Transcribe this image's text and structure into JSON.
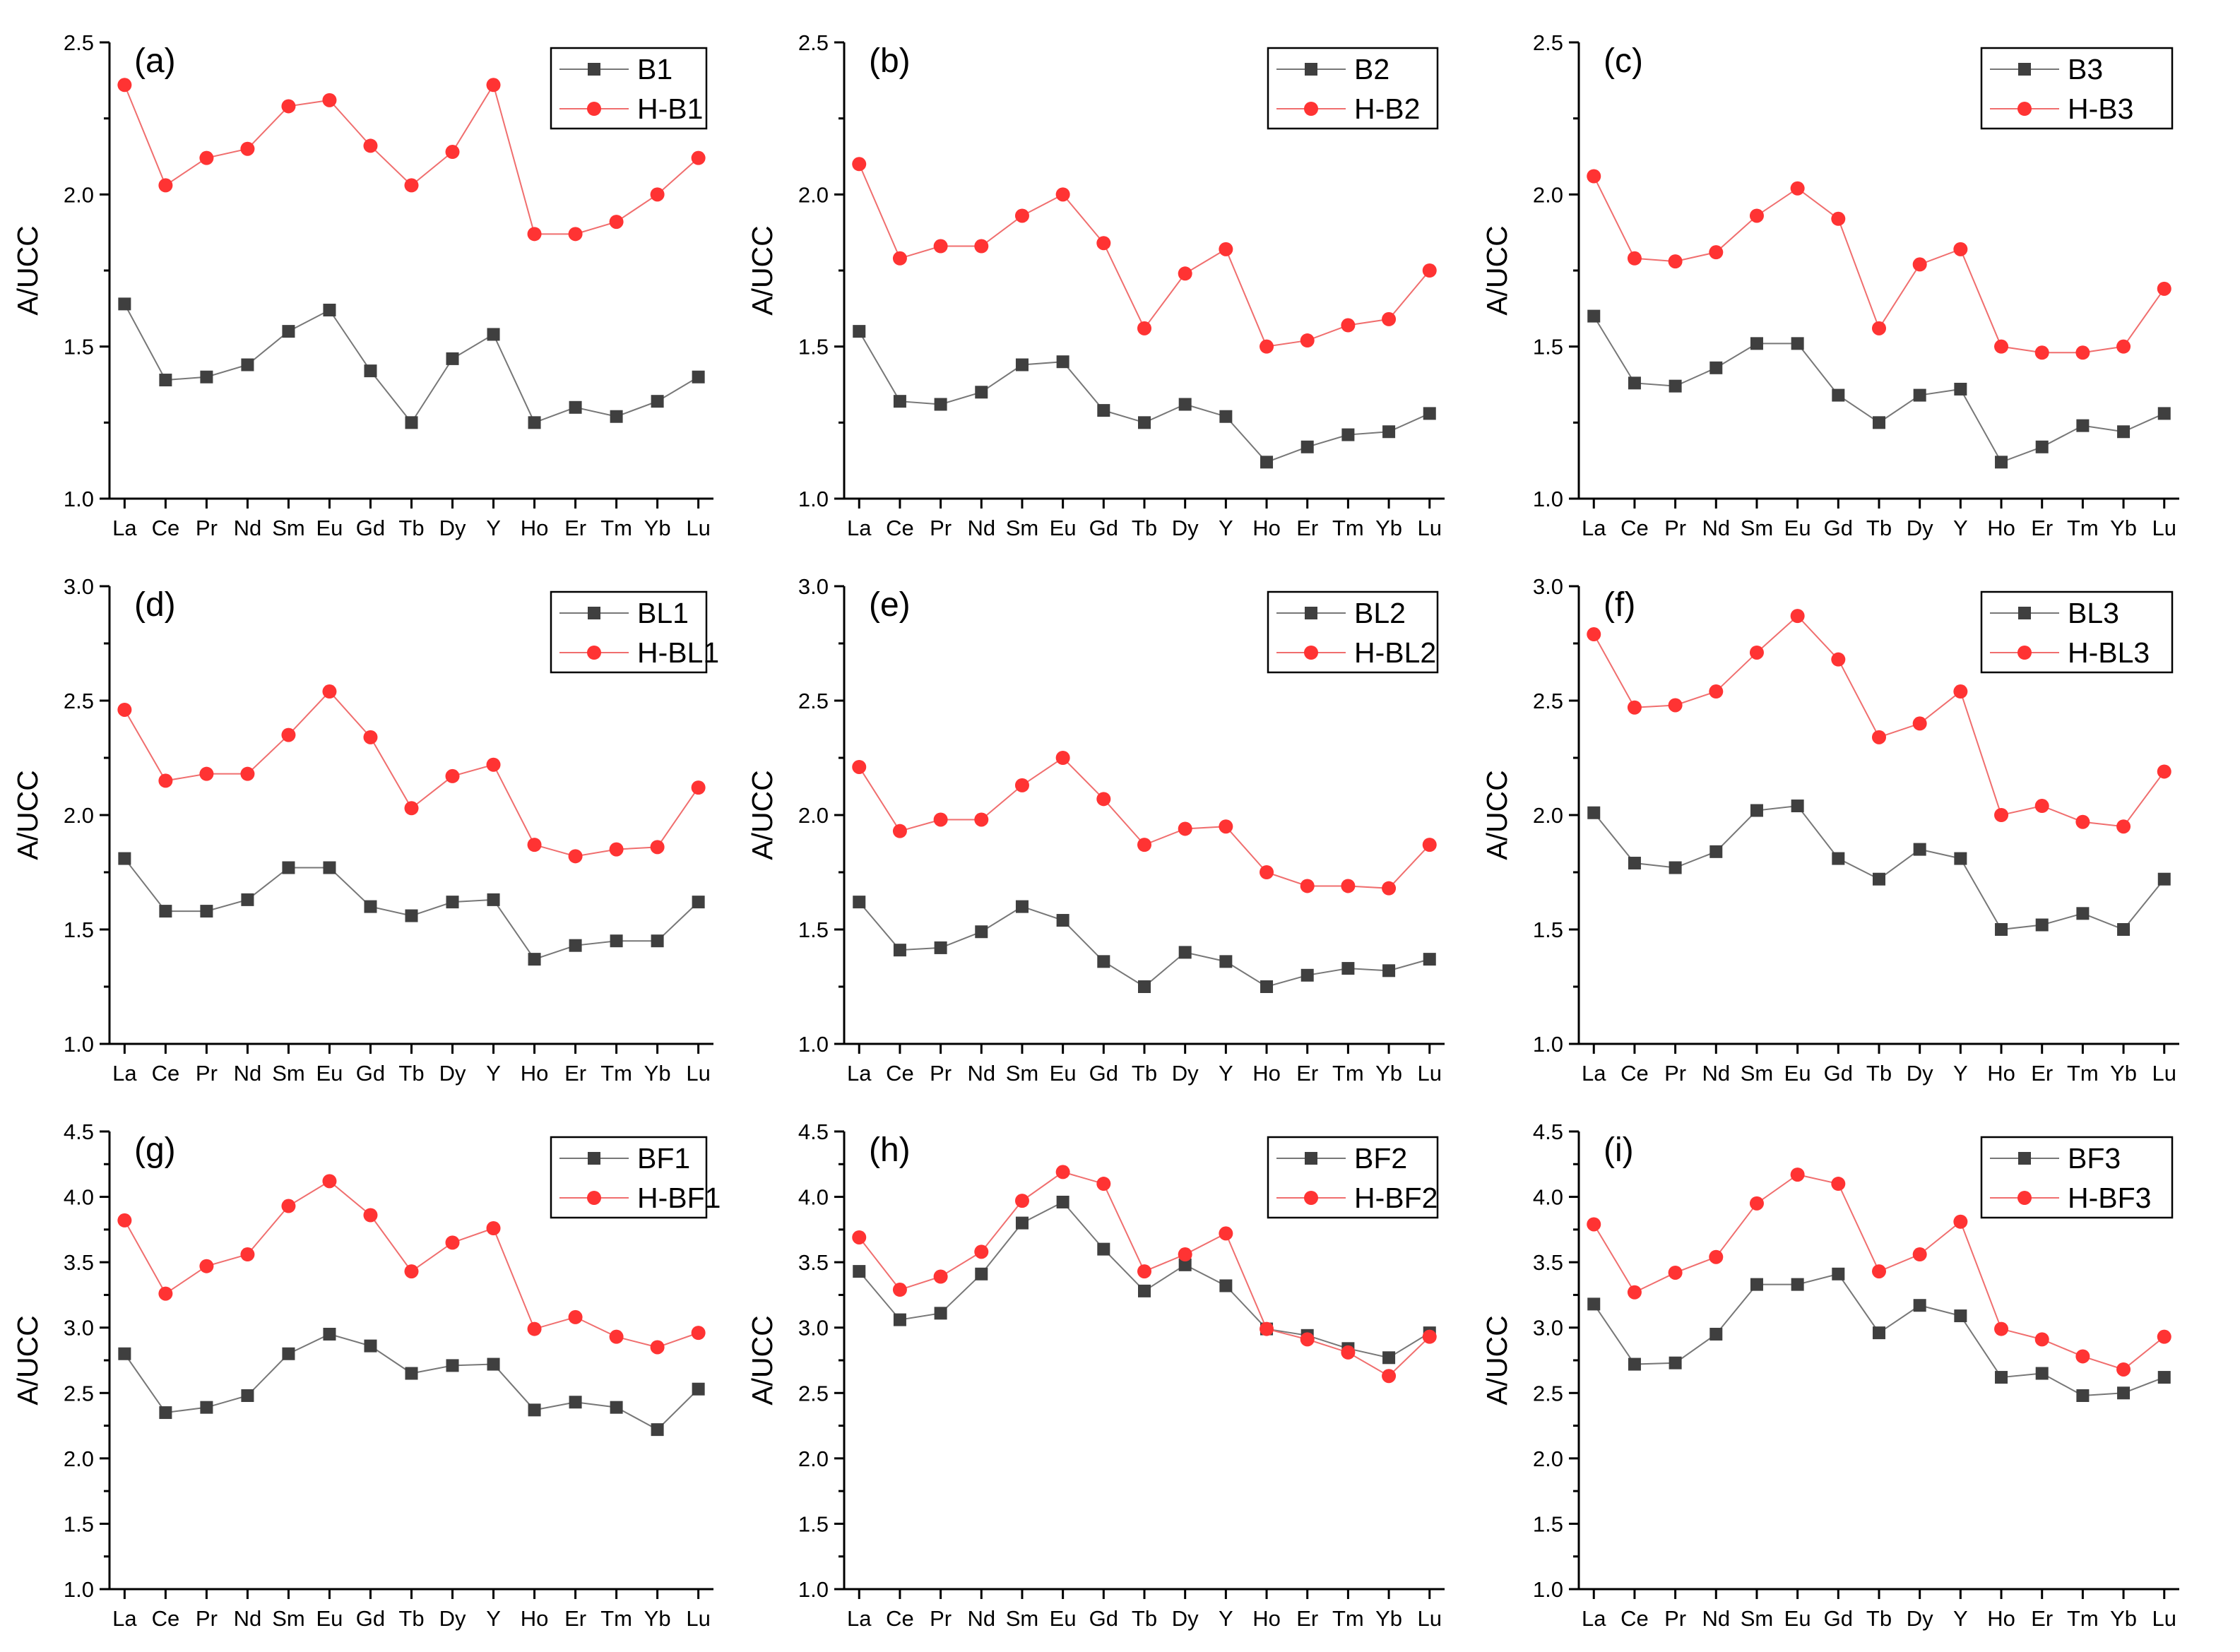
{
  "colors": {
    "sample_series": "#3f3f3f",
    "sample_line": "#777777",
    "h_series": "#ff3333",
    "h_line": "#f06e6e",
    "axis": "#000000"
  },
  "chart_data": [
    {
      "type": "line",
      "panel_label": "(a)",
      "ylabel": "A/UCC",
      "ylim": [
        1.0,
        2.5
      ],
      "yticks": [
        "1.0",
        "1.5",
        "2.0",
        "2.5"
      ],
      "categories": [
        "La",
        "Ce",
        "Pr",
        "Nd",
        "Sm",
        "Eu",
        "Gd",
        "Tb",
        "Dy",
        "Y",
        "Ho",
        "Er",
        "Tm",
        "Yb",
        "Lu"
      ],
      "legend_position": "top-right",
      "series": [
        {
          "name": "B1",
          "marker": "square",
          "values": [
            1.64,
            1.39,
            1.4,
            1.44,
            1.55,
            1.62,
            1.42,
            1.25,
            1.46,
            1.54,
            1.25,
            1.3,
            1.27,
            1.32,
            1.4
          ]
        },
        {
          "name": "H-B1",
          "marker": "circle",
          "values": [
            2.36,
            2.03,
            2.12,
            2.15,
            2.29,
            2.31,
            2.16,
            2.03,
            2.14,
            2.36,
            1.87,
            1.87,
            1.91,
            2.0,
            2.12
          ]
        }
      ]
    },
    {
      "type": "line",
      "panel_label": "(b)",
      "ylabel": "A/UCC",
      "ylim": [
        1.0,
        2.5
      ],
      "yticks": [
        "1.0",
        "1.5",
        "2.0",
        "2.5"
      ],
      "categories": [
        "La",
        "Ce",
        "Pr",
        "Nd",
        "Sm",
        "Eu",
        "Gd",
        "Tb",
        "Dy",
        "Y",
        "Ho",
        "Er",
        "Tm",
        "Yb",
        "Lu"
      ],
      "legend_position": "top-right",
      "series": [
        {
          "name": "B2",
          "marker": "square",
          "values": [
            1.55,
            1.32,
            1.31,
            1.35,
            1.44,
            1.45,
            1.29,
            1.25,
            1.31,
            1.27,
            1.12,
            1.17,
            1.21,
            1.22,
            1.28
          ]
        },
        {
          "name": "H-B2",
          "marker": "circle",
          "values": [
            2.1,
            1.79,
            1.83,
            1.83,
            1.93,
            2.0,
            1.84,
            1.56,
            1.74,
            1.82,
            1.5,
            1.52,
            1.57,
            1.59,
            1.75
          ]
        }
      ]
    },
    {
      "type": "line",
      "panel_label": "(c)",
      "ylabel": "A/UCC",
      "ylim": [
        1.0,
        2.5
      ],
      "yticks": [
        "1.0",
        "1.5",
        "2.0",
        "2.5"
      ],
      "categories": [
        "La",
        "Ce",
        "Pr",
        "Nd",
        "Sm",
        "Eu",
        "Gd",
        "Tb",
        "Dy",
        "Y",
        "Ho",
        "Er",
        "Tm",
        "Yb",
        "Lu"
      ],
      "legend_position": "top-right",
      "series": [
        {
          "name": "B3",
          "marker": "square",
          "values": [
            1.6,
            1.38,
            1.37,
            1.43,
            1.51,
            1.51,
            1.34,
            1.25,
            1.34,
            1.36,
            1.12,
            1.17,
            1.24,
            1.22,
            1.28
          ]
        },
        {
          "name": "H-B3",
          "marker": "circle",
          "values": [
            2.06,
            1.79,
            1.78,
            1.81,
            1.93,
            2.02,
            1.92,
            1.56,
            1.77,
            1.82,
            1.5,
            1.48,
            1.48,
            1.5,
            1.69
          ]
        }
      ]
    },
    {
      "type": "line",
      "panel_label": "(d)",
      "ylabel": "A/UCC",
      "ylim": [
        1.0,
        3.0
      ],
      "yticks": [
        "1.0",
        "1.5",
        "2.0",
        "2.5",
        "3.0"
      ],
      "categories": [
        "La",
        "Ce",
        "Pr",
        "Nd",
        "Sm",
        "Eu",
        "Gd",
        "Tb",
        "Dy",
        "Y",
        "Ho",
        "Er",
        "Tm",
        "Yb",
        "Lu"
      ],
      "legend_position": "top-right",
      "series": [
        {
          "name": "BL1",
          "marker": "square",
          "values": [
            1.81,
            1.58,
            1.58,
            1.63,
            1.77,
            1.77,
            1.6,
            1.56,
            1.62,
            1.63,
            1.37,
            1.43,
            1.45,
            1.45,
            1.62
          ]
        },
        {
          "name": "H-BL1",
          "marker": "circle",
          "values": [
            2.46,
            2.15,
            2.18,
            2.18,
            2.35,
            2.54,
            2.34,
            2.03,
            2.17,
            2.22,
            1.87,
            1.82,
            1.85,
            1.86,
            2.12
          ]
        }
      ]
    },
    {
      "type": "line",
      "panel_label": "(e)",
      "ylabel": "A/UCC",
      "ylim": [
        1.0,
        3.0
      ],
      "yticks": [
        "1.0",
        "1.5",
        "2.0",
        "2.5",
        "3.0"
      ],
      "categories": [
        "La",
        "Ce",
        "Pr",
        "Nd",
        "Sm",
        "Eu",
        "Gd",
        "Tb",
        "Dy",
        "Y",
        "Ho",
        "Er",
        "Tm",
        "Yb",
        "Lu"
      ],
      "legend_position": "top-right",
      "series": [
        {
          "name": "BL2",
          "marker": "square",
          "values": [
            1.62,
            1.41,
            1.42,
            1.49,
            1.6,
            1.54,
            1.36,
            1.25,
            1.4,
            1.36,
            1.25,
            1.3,
            1.33,
            1.32,
            1.37
          ]
        },
        {
          "name": "H-BL2",
          "marker": "circle",
          "values": [
            2.21,
            1.93,
            1.98,
            1.98,
            2.13,
            2.25,
            2.07,
            1.87,
            1.94,
            1.95,
            1.75,
            1.69,
            1.69,
            1.68,
            1.87
          ]
        }
      ]
    },
    {
      "type": "line",
      "panel_label": "(f)",
      "ylabel": "A/UCC",
      "ylim": [
        1.0,
        3.0
      ],
      "yticks": [
        "1.0",
        "1.5",
        "2.0",
        "2.5",
        "3.0"
      ],
      "categories": [
        "La",
        "Ce",
        "Pr",
        "Nd",
        "Sm",
        "Eu",
        "Gd",
        "Tb",
        "Dy",
        "Y",
        "Ho",
        "Er",
        "Tm",
        "Yb",
        "Lu"
      ],
      "legend_position": "top-right",
      "series": [
        {
          "name": "BL3",
          "marker": "square",
          "values": [
            2.01,
            1.79,
            1.77,
            1.84,
            2.02,
            2.04,
            1.81,
            1.72,
            1.85,
            1.81,
            1.5,
            1.52,
            1.57,
            1.5,
            1.72
          ]
        },
        {
          "name": "H-BL3",
          "marker": "circle",
          "values": [
            2.79,
            2.47,
            2.48,
            2.54,
            2.71,
            2.87,
            2.68,
            2.34,
            2.4,
            2.54,
            2.0,
            2.04,
            1.97,
            1.95,
            2.19
          ]
        }
      ]
    },
    {
      "type": "line",
      "panel_label": "(g)",
      "ylabel": "A/UCC",
      "ylim": [
        1.0,
        4.5
      ],
      "yticks": [
        "1.0",
        "1.5",
        "2.0",
        "2.5",
        "3.0",
        "3.5",
        "4.0",
        "4.5"
      ],
      "categories": [
        "La",
        "Ce",
        "Pr",
        "Nd",
        "Sm",
        "Eu",
        "Gd",
        "Tb",
        "Dy",
        "Y",
        "Ho",
        "Er",
        "Tm",
        "Yb",
        "Lu"
      ],
      "legend_position": "top-right",
      "series": [
        {
          "name": "BF1",
          "marker": "square",
          "values": [
            2.8,
            2.35,
            2.39,
            2.48,
            2.8,
            2.95,
            2.86,
            2.65,
            2.71,
            2.72,
            2.37,
            2.43,
            2.39,
            2.22,
            2.53
          ]
        },
        {
          "name": "H-BF1",
          "marker": "circle",
          "values": [
            3.82,
            3.26,
            3.47,
            3.56,
            3.93,
            4.12,
            3.86,
            3.43,
            3.65,
            3.76,
            2.99,
            3.08,
            2.93,
            2.85,
            2.96
          ]
        }
      ]
    },
    {
      "type": "line",
      "panel_label": "(h)",
      "ylabel": "A/UCC",
      "ylim": [
        1.0,
        4.5
      ],
      "yticks": [
        "1.0",
        "1.5",
        "2.0",
        "2.5",
        "3.0",
        "3.5",
        "4.0",
        "4.5"
      ],
      "categories": [
        "La",
        "Ce",
        "Pr",
        "Nd",
        "Sm",
        "Eu",
        "Gd",
        "Tb",
        "Dy",
        "Y",
        "Ho",
        "Er",
        "Tm",
        "Yb",
        "Lu"
      ],
      "legend_position": "top-right",
      "series": [
        {
          "name": "BF2",
          "marker": "square",
          "values": [
            3.43,
            3.06,
            3.11,
            3.41,
            3.8,
            3.96,
            3.6,
            3.28,
            3.48,
            3.32,
            2.99,
            2.94,
            2.84,
            2.77,
            2.96
          ]
        },
        {
          "name": "H-BF2",
          "marker": "circle",
          "values": [
            3.69,
            3.29,
            3.39,
            3.58,
            3.97,
            4.19,
            4.1,
            3.43,
            3.56,
            3.72,
            2.99,
            2.91,
            2.81,
            2.63,
            2.93
          ]
        }
      ]
    },
    {
      "type": "line",
      "panel_label": "(i)",
      "ylabel": "A/UCC",
      "ylim": [
        1.0,
        4.5
      ],
      "yticks": [
        "1.0",
        "1.5",
        "2.0",
        "2.5",
        "3.0",
        "3.5",
        "4.0",
        "4.5"
      ],
      "categories": [
        "La",
        "Ce",
        "Pr",
        "Nd",
        "Sm",
        "Eu",
        "Gd",
        "Tb",
        "Dy",
        "Y",
        "Ho",
        "Er",
        "Tm",
        "Yb",
        "Lu"
      ],
      "legend_position": "top-right",
      "series": [
        {
          "name": "BF3",
          "marker": "square",
          "values": [
            3.18,
            2.72,
            2.73,
            2.95,
            3.33,
            3.33,
            3.41,
            2.96,
            3.17,
            3.09,
            2.62,
            2.65,
            2.48,
            2.5,
            2.62
          ]
        },
        {
          "name": "H-BF3",
          "marker": "circle",
          "values": [
            3.79,
            3.27,
            3.42,
            3.54,
            3.95,
            4.17,
            4.1,
            3.43,
            3.56,
            3.81,
            2.99,
            2.91,
            2.78,
            2.68,
            2.93
          ]
        }
      ]
    }
  ]
}
